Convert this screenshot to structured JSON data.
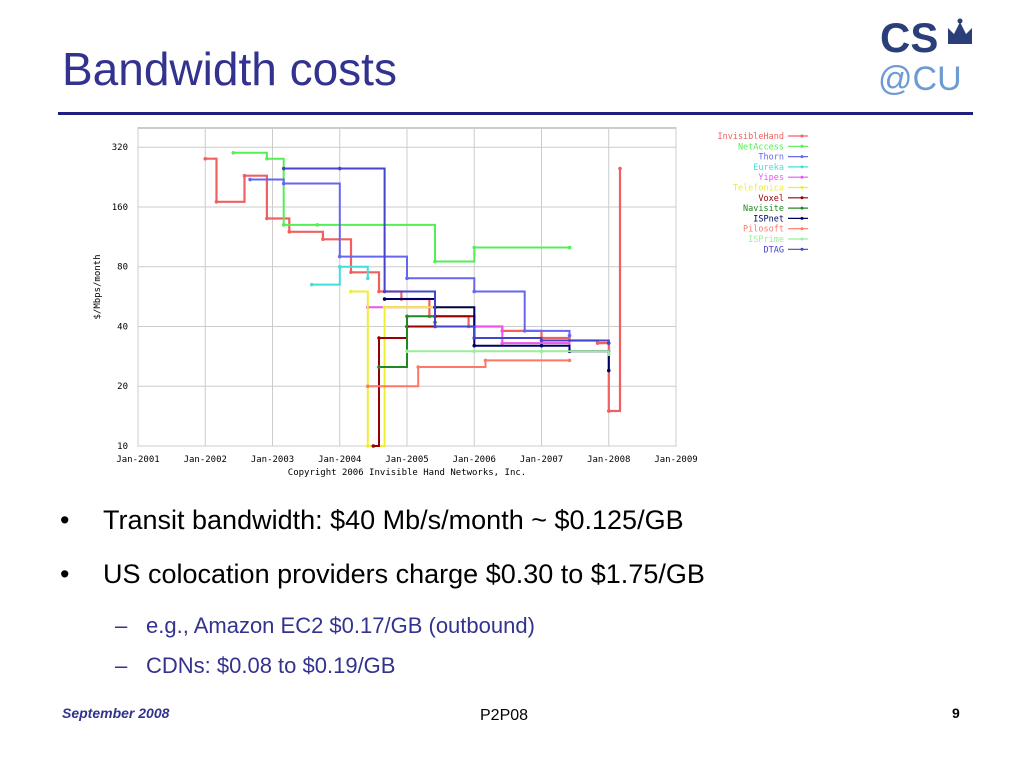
{
  "slide": {
    "title": "Bandwidth costs",
    "bullets": [
      "Transit bandwidth: $40 Mb/s/month ~ $0.125/GB",
      "US colocation providers charge $0.30 to $1.75/GB"
    ],
    "sub_bullets": [
      "e.g., Amazon EC2 $0.17/GB (outbound)",
      "CDNs: $0.08 to $0.19/GB"
    ],
    "bullet_symbol": "•",
    "sub_bullet_symbol": "–",
    "footer": {
      "left": "September 2008",
      "center": "P2P08",
      "right": "9"
    },
    "logo": {
      "line1": "CS",
      "line2": "@CU"
    },
    "colors": {
      "title": "#33338f",
      "rule": "#1f1f80"
    }
  },
  "chart_data": {
    "type": "line",
    "title": "",
    "xlabel": "",
    "ylabel": "$/Mbps/month",
    "yscale": "log",
    "ylim": [
      10,
      400
    ],
    "y_ticks": [
      "10",
      "20",
      "40",
      "80",
      "160",
      "320"
    ],
    "y_tick_values": [
      10,
      20,
      40,
      80,
      160,
      320
    ],
    "x_ticks": [
      "Jan-2001",
      "Jan-2002",
      "Jan-2003",
      "Jan-2004",
      "Jan-2005",
      "Jan-2006",
      "Jan-2007",
      "Jan-2008",
      "Jan-2009"
    ],
    "xlim": [
      "2001-01",
      "2009-01"
    ],
    "grid": true,
    "legend_placement": "right",
    "caption": "Copyright 2006 Invisible Hand Networks, Inc.",
    "series": [
      {
        "name": "InvisibleHand",
        "color": "#f06060",
        "points": [
          [
            "2002-01",
            280
          ],
          [
            "2002-03",
            170
          ],
          [
            "2002-08",
            230
          ],
          [
            "2002-12",
            140
          ],
          [
            "2003-04",
            120
          ],
          [
            "2003-10",
            110
          ],
          [
            "2004-03",
            75
          ],
          [
            "2004-08",
            60
          ],
          [
            "2004-12",
            55
          ],
          [
            "2005-05",
            45
          ],
          [
            "2005-12",
            40
          ],
          [
            "2006-06",
            38
          ],
          [
            "2007-01",
            35
          ],
          [
            "2007-06",
            34
          ],
          [
            "2007-11",
            33
          ],
          [
            "2008-01",
            15
          ],
          [
            "2008-03",
            250
          ]
        ]
      },
      {
        "name": "NetAccess",
        "color": "#55ee55",
        "points": [
          [
            "2002-06",
            300
          ],
          [
            "2002-12",
            280
          ],
          [
            "2003-03",
            130
          ],
          [
            "2003-09",
            130
          ],
          [
            "2005-06",
            85
          ],
          [
            "2006-01",
            100
          ],
          [
            "2007-06",
            100
          ]
        ]
      },
      {
        "name": "Thorn",
        "color": "#6666ee",
        "points": [
          [
            "2002-09",
            220
          ],
          [
            "2003-03",
            210
          ],
          [
            "2004-01",
            90
          ],
          [
            "2005-01",
            70
          ],
          [
            "2006-01",
            60
          ],
          [
            "2006-10",
            38
          ],
          [
            "2007-06",
            36
          ]
        ]
      },
      {
        "name": "Eureka",
        "color": "#44dddd",
        "points": [
          [
            "2003-08",
            65
          ],
          [
            "2004-01",
            80
          ],
          [
            "2004-06",
            70
          ]
        ]
      },
      {
        "name": "Yipes",
        "color": "#ee55ee",
        "points": [
          [
            "2004-06",
            50
          ],
          [
            "2005-06",
            40
          ],
          [
            "2006-06",
            33
          ],
          [
            "2007-06",
            30
          ],
          [
            "2008-01",
            30
          ]
        ]
      },
      {
        "name": "Telefonica",
        "color": "#eeee33",
        "points": [
          [
            "2004-03",
            60
          ],
          [
            "2004-06",
            10
          ],
          [
            "2004-09",
            50
          ],
          [
            "2006-01",
            45
          ]
        ]
      },
      {
        "name": "Voxel",
        "color": "#990000",
        "points": [
          [
            "2004-07",
            10
          ],
          [
            "2004-08",
            35
          ],
          [
            "2005-01",
            40
          ],
          [
            "2005-06",
            45
          ],
          [
            "2006-01",
            35
          ]
        ]
      },
      {
        "name": "Navisite",
        "color": "#228822",
        "points": [
          [
            "2004-08",
            25
          ],
          [
            "2005-01",
            45
          ],
          [
            "2005-06",
            42
          ]
        ]
      },
      {
        "name": "ISPnet",
        "color": "#000066",
        "points": [
          [
            "2004-09",
            55
          ],
          [
            "2005-06",
            50
          ],
          [
            "2006-01",
            32
          ],
          [
            "2007-01",
            32
          ],
          [
            "2007-06",
            30
          ],
          [
            "2008-01",
            24
          ]
        ]
      },
      {
        "name": "Pilosoft",
        "color": "#ff7766",
        "points": [
          [
            "2004-06",
            20
          ],
          [
            "2005-03",
            25
          ],
          [
            "2006-03",
            27
          ],
          [
            "2007-06",
            27
          ]
        ]
      },
      {
        "name": "ISPrime",
        "color": "#99ee99",
        "points": [
          [
            "2005-01",
            30
          ],
          [
            "2006-01",
            30
          ],
          [
            "2007-01",
            30
          ],
          [
            "2008-01",
            29
          ]
        ]
      },
      {
        "name": "DTAG",
        "color": "#4444cc",
        "points": [
          [
            "2003-03",
            250
          ],
          [
            "2004-01",
            250
          ],
          [
            "2004-09",
            60
          ],
          [
            "2005-06",
            40
          ],
          [
            "2006-01",
            35
          ],
          [
            "2007-01",
            34
          ],
          [
            "2008-01",
            33
          ]
        ]
      }
    ]
  }
}
